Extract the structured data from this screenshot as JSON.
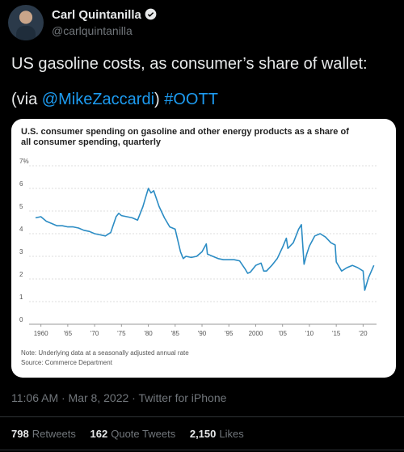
{
  "user": {
    "name": "Carl Quintanilla",
    "handle": "@carlquintanilla"
  },
  "tweet": {
    "text_line1": "US gasoline costs, as consumer’s share of wallet:",
    "via_open": "(via ",
    "via_link": "@MikeZaccardi",
    "via_close": ")",
    "hashtag": "#OOTT"
  },
  "chart_data": {
    "type": "line",
    "title": "U.S. consumer spending on gasoline and other energy products as a share of all consumer spending, quarterly",
    "ytick_labels": [
      "7%",
      "6",
      "5",
      "4",
      "3",
      "2",
      "1",
      "0"
    ],
    "xtick_labels": [
      "1960",
      "'65",
      "'70",
      "'75",
      "'80",
      "'85",
      "'90",
      "'95",
      "2000",
      "'05",
      "'10",
      "'15",
      "'20"
    ],
    "ylim": [
      0,
      7
    ],
    "xlim": [
      1959,
      2022.5
    ],
    "grid": true,
    "color": "#2b8cc4",
    "x": [
      1959,
      1960,
      1961,
      1962,
      1963,
      1964,
      1965,
      1966,
      1967,
      1968,
      1969,
      1970,
      1971,
      1972,
      1973,
      1974,
      1974.5,
      1975,
      1976,
      1977,
      1978,
      1979,
      1979.5,
      1980,
      1980.5,
      1981,
      1982,
      1983,
      1984,
      1985,
      1986,
      1986.5,
      1987,
      1988,
      1989,
      1990,
      1990.8,
      1991,
      1992,
      1993,
      1994,
      1995,
      1996,
      1997,
      1998,
      1998.5,
      1999,
      2000,
      2001,
      2001.5,
      2002,
      2003,
      2004,
      2005,
      2005.7,
      2006,
      2007,
      2008,
      2008.5,
      2009,
      2009.5,
      2010,
      2011,
      2012,
      2013,
      2014,
      2014.8,
      2015,
      2016,
      2017,
      2018,
      2019,
      2020,
      2020.3,
      2021,
      2022
    ],
    "y": [
      4.7,
      4.75,
      4.55,
      4.45,
      4.35,
      4.35,
      4.3,
      4.3,
      4.25,
      4.15,
      4.1,
      4.0,
      3.95,
      3.9,
      4.05,
      4.75,
      4.9,
      4.8,
      4.75,
      4.7,
      4.6,
      5.2,
      5.6,
      6.0,
      5.8,
      5.9,
      5.2,
      4.7,
      4.3,
      4.2,
      3.2,
      2.9,
      3.0,
      2.95,
      3.0,
      3.2,
      3.55,
      3.1,
      3.0,
      2.9,
      2.85,
      2.85,
      2.85,
      2.8,
      2.45,
      2.25,
      2.3,
      2.6,
      2.7,
      2.35,
      2.35,
      2.6,
      2.9,
      3.4,
      3.8,
      3.35,
      3.6,
      4.2,
      4.4,
      2.65,
      3.1,
      3.45,
      3.9,
      4.0,
      3.85,
      3.6,
      3.5,
      2.75,
      2.35,
      2.5,
      2.6,
      2.5,
      2.35,
      1.5,
      2.05,
      2.6
    ]
  },
  "chart_notes": {
    "note": "Note: Underlying data at a seasonally adjusted annual rate",
    "source": "Source: Commerce Department"
  },
  "meta": {
    "timestamp": "11:06 AM · Mar 8, 2022 · Twitter for iPhone"
  },
  "stats": {
    "retweets_count": "798",
    "retweets_label": "Retweets",
    "quotes_count": "162",
    "quotes_label": "Quote Tweets",
    "likes_count": "2,150",
    "likes_label": "Likes"
  }
}
